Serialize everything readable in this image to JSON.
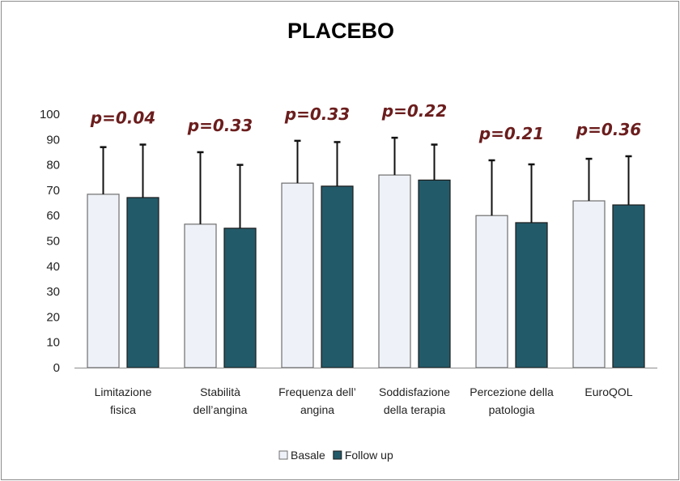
{
  "chart_data": {
    "type": "bar",
    "title": "PLACEBO",
    "xlabel": "",
    "ylabel": "",
    "ylim": [
      0,
      100
    ],
    "yticks": [
      0,
      10,
      20,
      30,
      40,
      50,
      60,
      70,
      80,
      90,
      100
    ],
    "grid": false,
    "legend_position": "bottom",
    "categories": [
      [
        "Limitazione",
        "fisica"
      ],
      [
        "Stabilità",
        "dell’angina"
      ],
      [
        "Frequenza dell’",
        "angina"
      ],
      [
        "Soddisfazione",
        "della terapia"
      ],
      [
        "Percezione della",
        "patologia"
      ],
      [
        "EuroQOL"
      ]
    ],
    "series": [
      {
        "name": "Basale",
        "color": "#eef2f8",
        "values": [
          68.4,
          56.6,
          72.8,
          76.0,
          60.0,
          65.8
        ],
        "error_upper": [
          87.0,
          85.0,
          89.5,
          90.7,
          81.8,
          82.4
        ]
      },
      {
        "name": "Follow up",
        "color": "#235a69",
        "values": [
          67.1,
          55.0,
          71.6,
          74.0,
          57.2,
          64.2
        ],
        "error_upper": [
          88.0,
          80.0,
          89.0,
          88.0,
          80.2,
          83.4
        ]
      }
    ],
    "annotations": [
      "p=0.04",
      "p=0.33",
      "p=0.33",
      "p=0.22",
      "p=0.21",
      "p=0.36"
    ],
    "annotation_color": "#6b1d1d"
  }
}
